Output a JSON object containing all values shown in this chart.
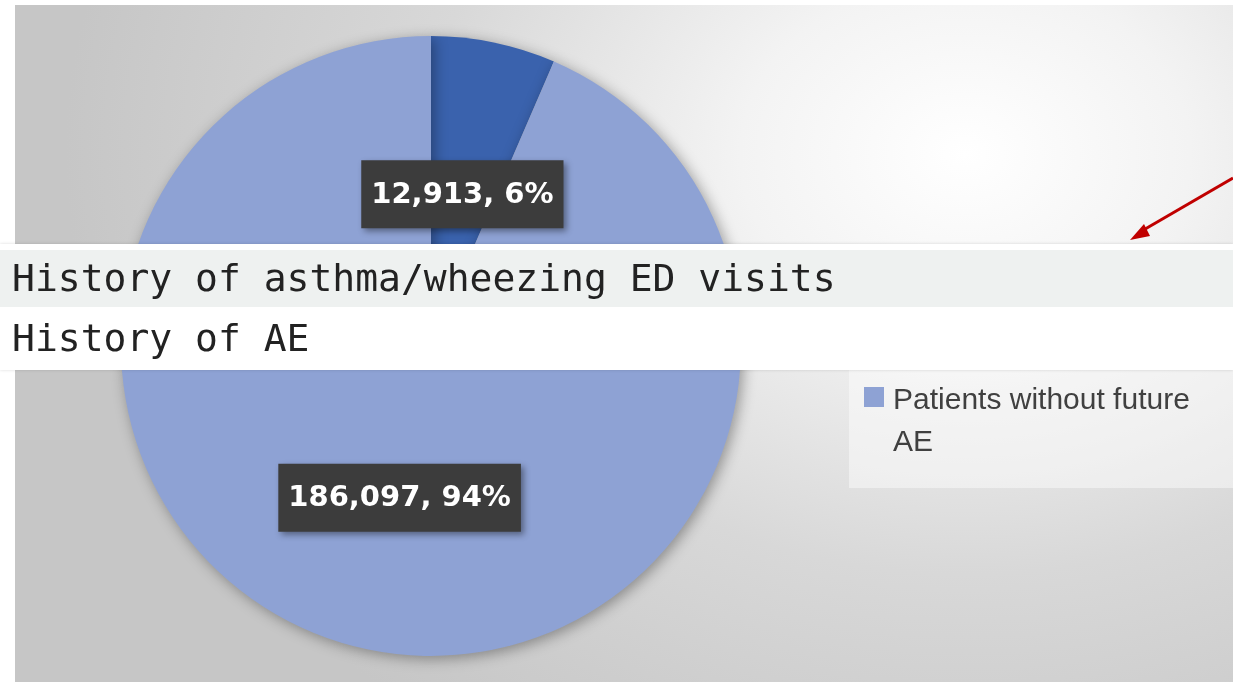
{
  "chart_data": {
    "type": "pie",
    "categories": [
      null,
      "Patients without future AE"
    ],
    "values": [
      12913,
      186097
    ],
    "colors": [
      "#3a62ad",
      "#8ea2d4"
    ],
    "value_labels": [
      "12,913, 6%",
      "186,097, 94%"
    ],
    "legend": "right",
    "annotations": [
      "History of asthma/wheezing ED visits",
      "History of AE"
    ]
  }
}
